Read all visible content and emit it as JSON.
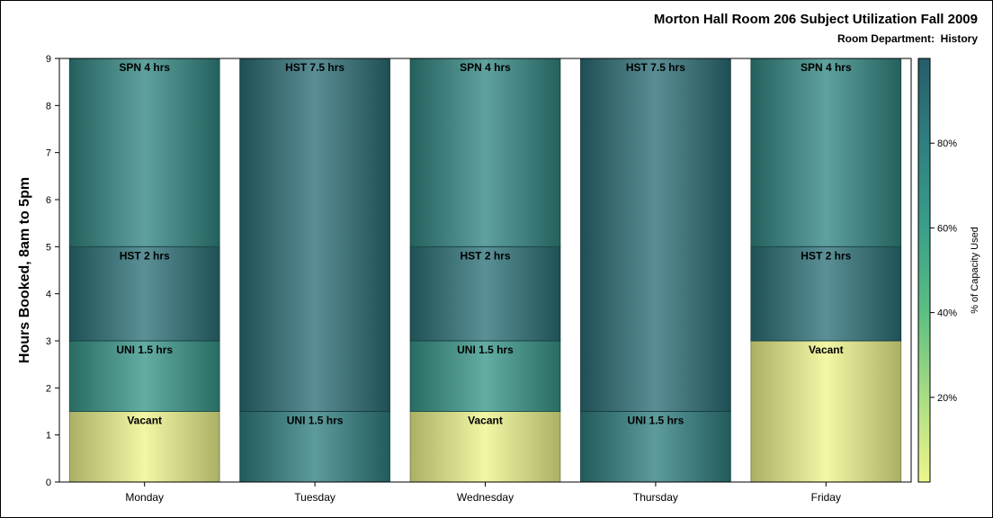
{
  "chart_data": {
    "type": "bar",
    "stacked": true,
    "title": "Morton Hall Room 206 Subject Utilization Fall 2009",
    "subtitle_label": "Room Department:",
    "subtitle_value": "History",
    "ylabel": "Hours Booked, 8am to 5pm",
    "ylim": [
      0,
      9
    ],
    "yticks": [
      "0",
      "1",
      "2",
      "3",
      "4",
      "5",
      "6",
      "7",
      "8",
      "9"
    ],
    "categories": [
      "Monday",
      "Tuesday",
      "Wednesday",
      "Thursday",
      "Friday"
    ],
    "bars": [
      {
        "day": "Monday",
        "segments": [
          {
            "label": "Vacant",
            "hours": 1.5,
            "capacity": 0
          },
          {
            "label": "UNI 1.5 hrs",
            "hours": 1.5,
            "capacity": 65
          },
          {
            "label": "HST 2 hrs",
            "hours": 2,
            "capacity": 88
          },
          {
            "label": "SPN 4 hrs",
            "hours": 4,
            "capacity": 75
          }
        ]
      },
      {
        "day": "Tuesday",
        "segments": [
          {
            "label": "UNI 1.5 hrs",
            "hours": 1.5,
            "capacity": 80
          },
          {
            "label": "HST 7.5 hrs",
            "hours": 7.5,
            "capacity": 90
          }
        ]
      },
      {
        "day": "Wednesday",
        "segments": [
          {
            "label": "Vacant",
            "hours": 1.5,
            "capacity": 0
          },
          {
            "label": "UNI 1.5 hrs",
            "hours": 1.5,
            "capacity": 65
          },
          {
            "label": "HST 2 hrs",
            "hours": 2,
            "capacity": 88
          },
          {
            "label": "SPN 4 hrs",
            "hours": 4,
            "capacity": 75
          }
        ]
      },
      {
        "day": "Thursday",
        "segments": [
          {
            "label": "UNI 1.5 hrs",
            "hours": 1.5,
            "capacity": 80
          },
          {
            "label": "HST 7.5 hrs",
            "hours": 7.5,
            "capacity": 90
          }
        ]
      },
      {
        "day": "Friday",
        "segments": [
          {
            "label": "Vacant",
            "hours": 3,
            "capacity": 0
          },
          {
            "label": "HST 2 hrs",
            "hours": 2,
            "capacity": 88
          },
          {
            "label": "SPN 4 hrs",
            "hours": 4,
            "capacity": 75
          }
        ]
      }
    ],
    "colorbar": {
      "label": "% of Capacity Used",
      "ticks": [
        "20%",
        "40%",
        "60%",
        "80%"
      ],
      "tick_values": [
        20,
        40,
        60,
        80
      ],
      "range": [
        0,
        100
      ],
      "colors": [
        "#eef58c",
        "#a9dd83",
        "#5cbf82",
        "#3a9e8a",
        "#2f7f80",
        "#265d6b"
      ]
    },
    "grid": false,
    "legend": "right"
  }
}
